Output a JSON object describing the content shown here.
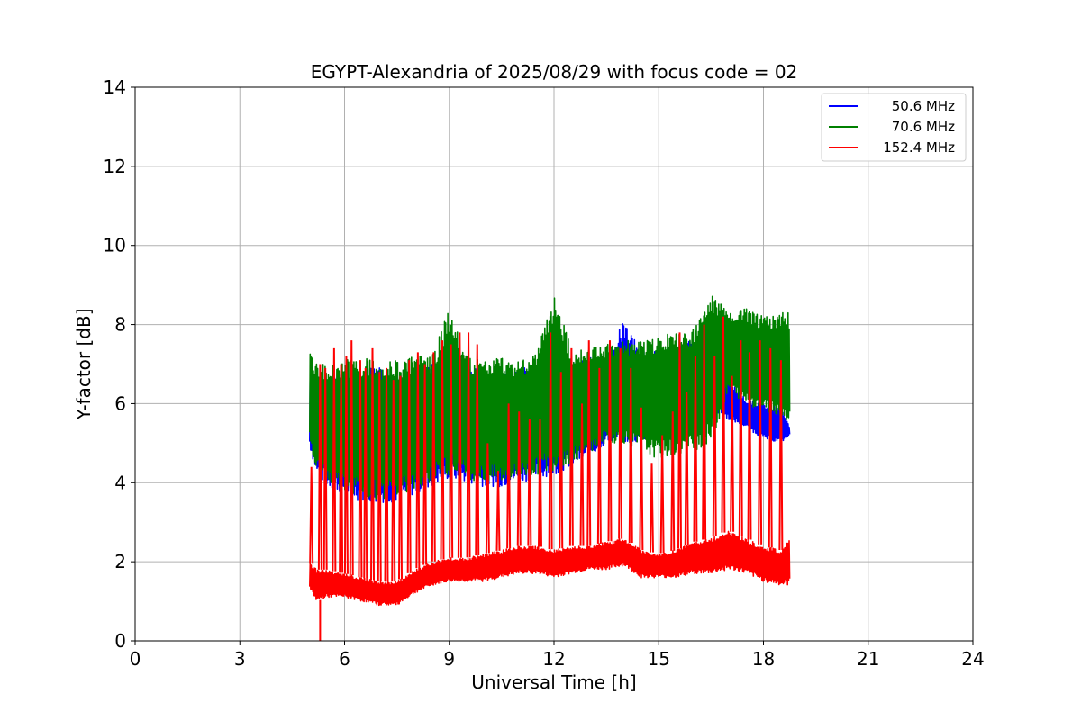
{
  "chart_data": {
    "type": "line",
    "title": "EGYPT-Alexandria of 2025/08/29 with focus code = 02",
    "xlabel": "Universal Time [h]",
    "ylabel": "Y-factor [dB]",
    "xlim": [
      0,
      24
    ],
    "ylim": [
      0,
      14
    ],
    "xticks": [
      0,
      3,
      6,
      9,
      12,
      15,
      18,
      21,
      24
    ],
    "yticks": [
      0,
      2,
      4,
      6,
      8,
      10,
      12,
      14
    ],
    "grid": true,
    "legend_position": "top-right",
    "series": [
      {
        "name": "50.6 MHz",
        "color": "#0000ff",
        "x": [
          5.0,
          5.2,
          5.5,
          6.0,
          6.5,
          7.0,
          7.5,
          8.0,
          8.5,
          9.0,
          9.5,
          10.0,
          10.5,
          11.0,
          11.5,
          12.0,
          12.5,
          13.0,
          13.5,
          14.0,
          14.5,
          15.0,
          15.5,
          16.0,
          16.5,
          17.0,
          17.5,
          18.0,
          18.5,
          18.75
        ],
        "y_low": [
          4.9,
          4.2,
          3.9,
          3.7,
          3.5,
          3.5,
          3.5,
          3.7,
          3.9,
          4.1,
          4.0,
          3.9,
          3.9,
          4.0,
          4.1,
          4.2,
          4.4,
          4.6,
          5.0,
          5.0,
          5.0,
          5.2,
          5.5,
          5.7,
          5.8,
          5.6,
          5.4,
          5.1,
          5.0,
          5.2
        ],
        "y_high": [
          6.8,
          6.6,
          6.7,
          6.8,
          6.9,
          6.9,
          6.9,
          6.9,
          7.0,
          7.0,
          6.9,
          6.9,
          6.9,
          6.9,
          7.0,
          7.0,
          7.1,
          7.2,
          7.2,
          8.1,
          7.3,
          7.4,
          7.5,
          7.6,
          7.8,
          6.6,
          6.1,
          6.0,
          5.9,
          5.4
        ]
      },
      {
        "name": "70.6 MHz",
        "color": "#008000",
        "x": [
          5.0,
          5.2,
          5.5,
          6.0,
          6.5,
          7.0,
          7.5,
          8.0,
          8.5,
          9.0,
          9.5,
          10.0,
          10.5,
          11.0,
          11.5,
          12.0,
          12.5,
          13.0,
          13.5,
          14.0,
          14.5,
          15.0,
          15.5,
          16.0,
          16.5,
          17.0,
          17.5,
          18.0,
          18.5,
          18.75
        ],
        "y_low": [
          5.0,
          4.3,
          4.0,
          3.8,
          3.6,
          3.6,
          3.6,
          3.8,
          4.0,
          4.2,
          4.1,
          4.0,
          4.0,
          4.1,
          4.2,
          4.3,
          4.5,
          4.7,
          5.0,
          5.0,
          4.8,
          4.6,
          4.7,
          4.8,
          5.0,
          6.3,
          6.0,
          5.8,
          5.7,
          5.5
        ],
        "y_high": [
          7.3,
          7.0,
          7.0,
          7.1,
          7.2,
          7.1,
          7.1,
          7.2,
          7.2,
          8.4,
          7.2,
          7.1,
          7.2,
          7.1,
          7.3,
          8.8,
          7.4,
          7.4,
          7.5,
          7.6,
          7.6,
          7.7,
          7.8,
          7.9,
          8.8,
          8.3,
          8.4,
          8.2,
          8.3,
          8.3
        ]
      },
      {
        "name": "152.4 MHz",
        "color": "#ff0000",
        "x": [
          5.0,
          5.2,
          5.5,
          6.0,
          6.5,
          7.0,
          7.5,
          8.0,
          8.5,
          9.0,
          9.5,
          10.0,
          10.5,
          11.0,
          11.5,
          12.0,
          12.5,
          13.0,
          13.5,
          14.0,
          14.5,
          15.0,
          15.5,
          16.0,
          16.5,
          17.0,
          17.5,
          18.0,
          18.5,
          18.75
        ],
        "y_low": [
          1.3,
          1.0,
          1.1,
          1.1,
          1.0,
          0.9,
          0.9,
          1.2,
          1.4,
          1.5,
          1.5,
          1.5,
          1.6,
          1.7,
          1.7,
          1.6,
          1.7,
          1.8,
          1.8,
          1.9,
          1.6,
          1.6,
          1.6,
          1.7,
          1.7,
          1.8,
          1.7,
          1.5,
          1.4,
          1.4
        ],
        "y_high": [
          2.0,
          1.8,
          1.8,
          1.7,
          1.6,
          1.5,
          1.5,
          1.8,
          2.0,
          2.1,
          2.1,
          2.2,
          2.3,
          2.4,
          2.4,
          2.3,
          2.4,
          2.4,
          2.5,
          2.6,
          2.3,
          2.2,
          2.3,
          2.5,
          2.6,
          2.8,
          2.6,
          2.4,
          2.3,
          2.6
        ],
        "spikes": [
          [
            5.05,
            4.4
          ],
          [
            5.3,
            7.0
          ],
          [
            5.45,
            6.9
          ],
          [
            5.7,
            7.4
          ],
          [
            5.9,
            7.0
          ],
          [
            6.05,
            7.2
          ],
          [
            6.2,
            7.6
          ],
          [
            6.45,
            7.1
          ],
          [
            6.6,
            6.9
          ],
          [
            6.8,
            7.4
          ],
          [
            7.0,
            6.8
          ],
          [
            7.2,
            6.9
          ],
          [
            7.4,
            6.6
          ],
          [
            7.6,
            6.7
          ],
          [
            7.85,
            7.1
          ],
          [
            8.1,
            7.3
          ],
          [
            8.3,
            7.0
          ],
          [
            8.55,
            7.3
          ],
          [
            8.8,
            7.6
          ],
          [
            9.05,
            7.5
          ],
          [
            9.3,
            7.8
          ],
          [
            9.55,
            7.8
          ],
          [
            9.8,
            7.5
          ],
          [
            10.1,
            5.0
          ],
          [
            10.4,
            4.3
          ],
          [
            10.7,
            6.0
          ],
          [
            11.0,
            5.8
          ],
          [
            11.3,
            5.6
          ],
          [
            11.6,
            5.6
          ],
          [
            11.9,
            7.8
          ],
          [
            12.2,
            6.8
          ],
          [
            12.5,
            7.4
          ],
          [
            12.8,
            6.0
          ],
          [
            13.0,
            7.6
          ],
          [
            13.3,
            6.9
          ],
          [
            13.6,
            7.6
          ],
          [
            13.9,
            7.4
          ],
          [
            14.2,
            6.9
          ],
          [
            14.5,
            5.9
          ],
          [
            14.8,
            4.5
          ],
          [
            15.1,
            5.2
          ],
          [
            15.4,
            5.8
          ],
          [
            15.6,
            7.8
          ],
          [
            15.8,
            6.3
          ],
          [
            16.05,
            7.2
          ],
          [
            16.3,
            8.0
          ],
          [
            16.6,
            7.2
          ],
          [
            16.85,
            8.2
          ],
          [
            17.1,
            6.7
          ],
          [
            17.35,
            7.6
          ],
          [
            17.6,
            7.3
          ],
          [
            17.9,
            7.6
          ],
          [
            18.2,
            7.4
          ],
          [
            18.5,
            7.1
          ]
        ],
        "dropout": [
          5.3,
          0.0
        ]
      }
    ]
  }
}
